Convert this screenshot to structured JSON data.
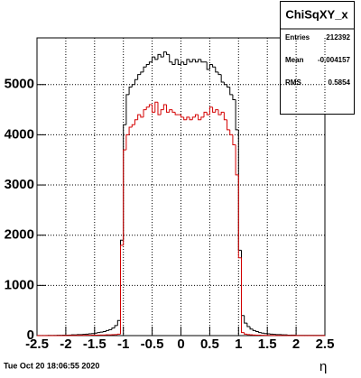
{
  "chart_data": {
    "type": "histogram",
    "bins": [
      -2.5,
      -2.45,
      -2.4,
      -2.35,
      -2.3,
      -2.25,
      -2.2,
      -2.15,
      -2.1,
      -2.05,
      -2,
      -1.95,
      -1.9,
      -1.85,
      -1.8,
      -1.75,
      -1.7,
      -1.65,
      -1.6,
      -1.55,
      -1.5,
      -1.45,
      -1.4,
      -1.35,
      -1.3,
      -1.25,
      -1.2,
      -1.15,
      -1.1,
      -1.05,
      -1,
      -0.95,
      -0.9,
      -0.85,
      -0.8,
      -0.75,
      -0.7,
      -0.65,
      -0.6,
      -0.55,
      -0.5,
      -0.45,
      -0.4,
      -0.35,
      -0.3,
      -0.25,
      -0.2,
      -0.15,
      -0.1,
      -0.05,
      0,
      0.05,
      0.1,
      0.15,
      0.2,
      0.25,
      0.3,
      0.35,
      0.4,
      0.45,
      0.5,
      0.55,
      0.6,
      0.65,
      0.7,
      0.75,
      0.8,
      0.85,
      0.9,
      0.95,
      1,
      1.05,
      1.1,
      1.15,
      1.2,
      1.25,
      1.3,
      1.35,
      1.4,
      1.45,
      1.5,
      1.55,
      1.6,
      1.65,
      1.7,
      1.75,
      1.8,
      1.85,
      1.9,
      1.95,
      2,
      2.05,
      2.1,
      2.15,
      2.2,
      2.25,
      2.3,
      2.35,
      2.4,
      2.45,
      2.5
    ],
    "series": [
      {
        "color": "#000000",
        "values": [
          2,
          2,
          3,
          3,
          4,
          4,
          5,
          6,
          7,
          8,
          10,
          10,
          15,
          15,
          20,
          20,
          25,
          30,
          35,
          40,
          50,
          60,
          70,
          80,
          100,
          120,
          150,
          200,
          300,
          1900,
          4200,
          4800,
          4950,
          5000,
          5100,
          5200,
          5250,
          5350,
          5400,
          5450,
          5550,
          5500,
          5600,
          5550,
          5650,
          5600,
          5450,
          5400,
          5500,
          5400,
          5450,
          5400,
          5500,
          5450,
          5500,
          5450,
          5500,
          5450,
          5450,
          5300,
          5400,
          5350,
          5250,
          5200,
          5050,
          5000,
          4950,
          4800,
          4700,
          4100,
          1700,
          400,
          250,
          180,
          130,
          100,
          80,
          60,
          50,
          40,
          35,
          30,
          25,
          20,
          20,
          15,
          15,
          10,
          10,
          10,
          5,
          5,
          5,
          5,
          5,
          5,
          5,
          5,
          5,
          5
        ]
      },
      {
        "color": "#d40000",
        "values": [
          0,
          0,
          0,
          0,
          0,
          0,
          0,
          0,
          0,
          0,
          2,
          2,
          3,
          3,
          4,
          5,
          5,
          6,
          7,
          8,
          10,
          10,
          12,
          12,
          15,
          15,
          18,
          20,
          30,
          1800,
          3700,
          4000,
          4150,
          4200,
          4300,
          4400,
          4350,
          4500,
          4550,
          4600,
          4450,
          4650,
          4400,
          4500,
          4600,
          4450,
          4500,
          4450,
          4400,
          4400,
          4350,
          4300,
          4350,
          4300,
          4350,
          4400,
          4300,
          4350,
          4450,
          4400,
          4550,
          4450,
          4500,
          4400,
          4450,
          4300,
          4100,
          4000,
          3800,
          3200,
          1550,
          60,
          30,
          20,
          15,
          12,
          10,
          8,
          6,
          5,
          4,
          4,
          3,
          3,
          2,
          2,
          2,
          1,
          1,
          1,
          0,
          0,
          0,
          0,
          0,
          0,
          0,
          0,
          0,
          0
        ]
      }
    ],
    "xlim": [
      -2.5,
      2.5
    ],
    "ylim": [
      0,
      5930
    ],
    "xticks": [
      -2.5,
      -2,
      -1.5,
      -1,
      -0.5,
      0,
      0.5,
      1,
      1.5,
      2,
      2.5
    ],
    "yticks": [
      0,
      1000,
      2000,
      3000,
      4000,
      5000
    ],
    "grid": true,
    "xlabel": "η",
    "stats": {
      "title": "ChiSqXY_x",
      "rows": [
        {
          "label": "Entries",
          "value": 212392
        },
        {
          "label": "Mean",
          "value": -0.004157
        },
        {
          "label": "RMS",
          "value": 0.5854
        }
      ]
    },
    "timestamp": "Tue Oct 20 18:06:55 2020"
  }
}
